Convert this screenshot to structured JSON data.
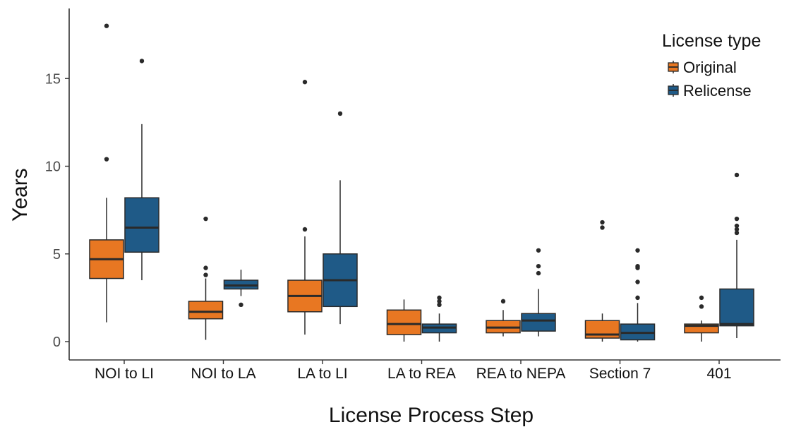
{
  "chart_data": {
    "type": "boxplot",
    "title": "",
    "xlabel": "License Process Step",
    "ylabel": "Years",
    "ylim": [
      -1,
      19
    ],
    "yticks": [
      0,
      5,
      10,
      15
    ],
    "grid": false,
    "legend": {
      "title": "License type",
      "placement": "top-right",
      "entries": [
        "Original",
        "Relicense"
      ]
    },
    "colors": {
      "Original": "#e87722",
      "Relicense": "#1f5a87",
      "outline": "#2a2a2a"
    },
    "categories": [
      "NOI to LI",
      "NOI to LA",
      "LA to LI",
      "LA to REA",
      "REA to NEPA",
      "Section 7",
      "401"
    ],
    "series": [
      {
        "name": "Original",
        "boxes": [
          {
            "min": 1.1,
            "q1": 3.6,
            "median": 4.7,
            "q3": 5.8,
            "max": 8.2,
            "outliers": [
              10.4,
              18.0
            ]
          },
          {
            "min": 0.1,
            "q1": 1.3,
            "median": 1.7,
            "q3": 2.3,
            "max": 3.6,
            "outliers": [
              3.8,
              4.2,
              7.0
            ]
          },
          {
            "min": 0.4,
            "q1": 1.7,
            "median": 2.6,
            "q3": 3.5,
            "max": 6.0,
            "outliers": [
              6.4,
              14.8
            ]
          },
          {
            "min": 0.0,
            "q1": 0.4,
            "median": 1.0,
            "q3": 1.8,
            "max": 2.4,
            "outliers": []
          },
          {
            "min": 0.3,
            "q1": 0.5,
            "median": 0.8,
            "q3": 1.2,
            "max": 1.8,
            "outliers": [
              2.3
            ]
          },
          {
            "min": 0.0,
            "q1": 0.2,
            "median": 0.4,
            "q3": 1.2,
            "max": 1.6,
            "outliers": [
              6.5,
              6.8
            ]
          },
          {
            "min": 0.0,
            "q1": 0.5,
            "median": 0.9,
            "q3": 1.0,
            "max": 1.2,
            "outliers": [
              2.0,
              2.5
            ]
          }
        ]
      },
      {
        "name": "Relicense",
        "boxes": [
          {
            "min": 3.5,
            "q1": 5.1,
            "median": 6.5,
            "q3": 8.2,
            "max": 12.4,
            "outliers": [
              16.0
            ]
          },
          {
            "min": 2.6,
            "q1": 3.0,
            "median": 3.2,
            "q3": 3.5,
            "max": 4.1,
            "outliers": [
              2.1
            ]
          },
          {
            "min": 1.0,
            "q1": 2.0,
            "median": 3.5,
            "q3": 5.0,
            "max": 9.2,
            "outliers": [
              13.0
            ]
          },
          {
            "min": 0.0,
            "q1": 0.5,
            "median": 0.8,
            "q3": 1.0,
            "max": 1.6,
            "outliers": [
              2.1,
              2.3,
              2.5
            ]
          },
          {
            "min": 0.3,
            "q1": 0.6,
            "median": 1.2,
            "q3": 1.6,
            "max": 3.0,
            "outliers": [
              3.9,
              4.3,
              5.2
            ]
          },
          {
            "min": 0.0,
            "q1": 0.1,
            "median": 0.5,
            "q3": 1.0,
            "max": 2.2,
            "outliers": [
              2.5,
              3.4,
              4.2,
              4.3,
              5.2
            ]
          },
          {
            "min": 0.2,
            "q1": 0.9,
            "median": 1.0,
            "q3": 3.0,
            "max": 5.8,
            "outliers": [
              6.2,
              6.4,
              6.6,
              7.0,
              9.5
            ]
          }
        ]
      }
    ]
  }
}
